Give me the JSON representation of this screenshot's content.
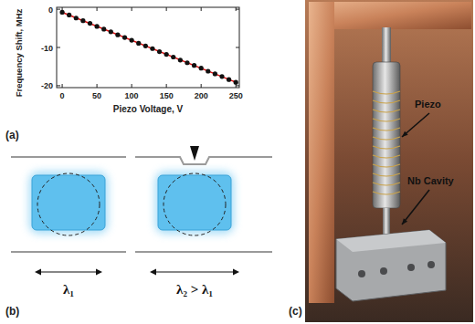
{
  "chart_data": {
    "type": "scatter",
    "x_label": "Piezo Voltage, V",
    "y_label": "Frequency Shift, MHz",
    "xlim": [
      -8,
      255
    ],
    "ylim": [
      -20.5,
      0.5
    ],
    "xticks": [
      0,
      50,
      100,
      150,
      200,
      250
    ],
    "yticks": [
      -20,
      -10,
      0
    ],
    "grid": false,
    "series": [
      {
        "type": "scatter",
        "color": "#111111",
        "marker": "circle",
        "x": [
          0,
          10,
          20,
          30,
          40,
          50,
          60,
          70,
          80,
          90,
          100,
          110,
          120,
          130,
          140,
          150,
          160,
          170,
          180,
          190,
          200,
          210,
          220,
          230,
          240,
          250
        ],
        "values": [
          -0.8,
          -1.5,
          -2.3,
          -3.0,
          -3.7,
          -4.5,
          -5.2,
          -5.9,
          -6.7,
          -7.4,
          -8.1,
          -8.9,
          -9.6,
          -10.3,
          -11.1,
          -11.8,
          -12.5,
          -13.3,
          -14.0,
          -14.7,
          -15.4,
          -16.2,
          -16.9,
          -17.6,
          -18.4,
          -19.1
        ]
      },
      {
        "type": "line",
        "color": "#dd1111",
        "line_style": "solid",
        "x": [
          0,
          250
        ],
        "values": [
          -0.8,
          -19.1
        ]
      }
    ]
  },
  "panel_labels": [
    "(a)",
    "(b)",
    "(c)"
  ],
  "diagram": {
    "left_label": "λ₁",
    "right_label": "λ₂ > λ₁"
  },
  "photo": {
    "labels": [
      "Piezo",
      "Nb Cavity"
    ]
  }
}
